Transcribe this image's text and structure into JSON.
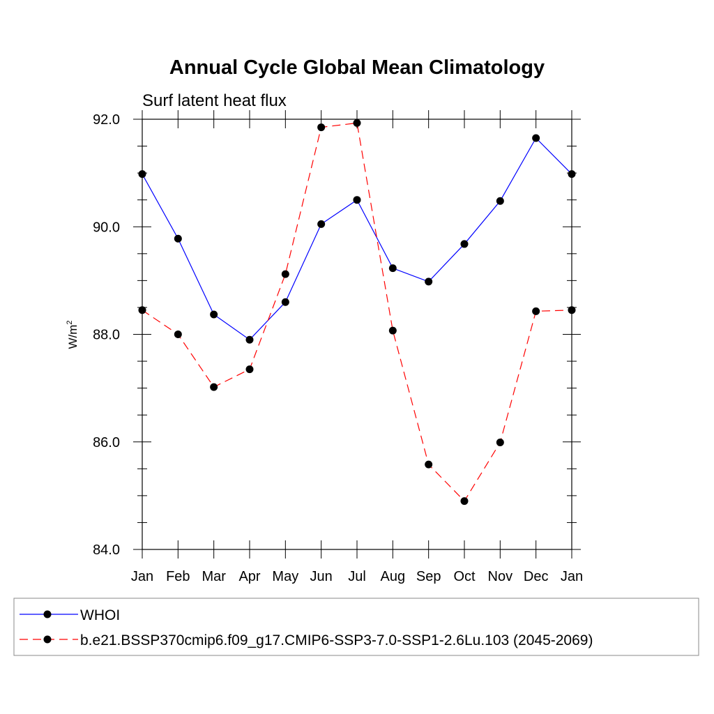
{
  "chart_data": {
    "type": "line",
    "title": "Annual Cycle Global Mean Climatology",
    "subtitle": "Surf latent heat flux",
    "ylabel_base": "W/m",
    "ylabel_sup": "2",
    "categories": [
      "Jan",
      "Feb",
      "Mar",
      "Apr",
      "May",
      "Jun",
      "Jul",
      "Aug",
      "Sep",
      "Oct",
      "Nov",
      "Dec",
      "Jan"
    ],
    "ylim": [
      84.0,
      92.0
    ],
    "yticks": [
      "84.0",
      "86.0",
      "88.0",
      "90.0",
      "92.0"
    ],
    "ytick_values": [
      84,
      86,
      88,
      90,
      92
    ],
    "grid": false,
    "legend_position": "bottom",
    "series": [
      {
        "name": "WHOI",
        "color": "#0000ff",
        "style": "solid",
        "values": [
          90.98,
          89.78,
          88.37,
          87.9,
          88.6,
          90.05,
          90.5,
          89.23,
          88.98,
          89.68,
          90.48,
          91.65,
          90.98
        ]
      },
      {
        "name": "b.e21.BSSP370cmip6.f09_g17.CMIP6-SSP3-7.0-SSP1-2.6Lu.103 (2045-2069)",
        "color": "#ff0000",
        "style": "dashed",
        "values": [
          88.45,
          88.0,
          87.02,
          87.35,
          89.12,
          91.85,
          91.93,
          88.07,
          85.58,
          84.9,
          85.99,
          88.43,
          88.45
        ]
      }
    ]
  }
}
